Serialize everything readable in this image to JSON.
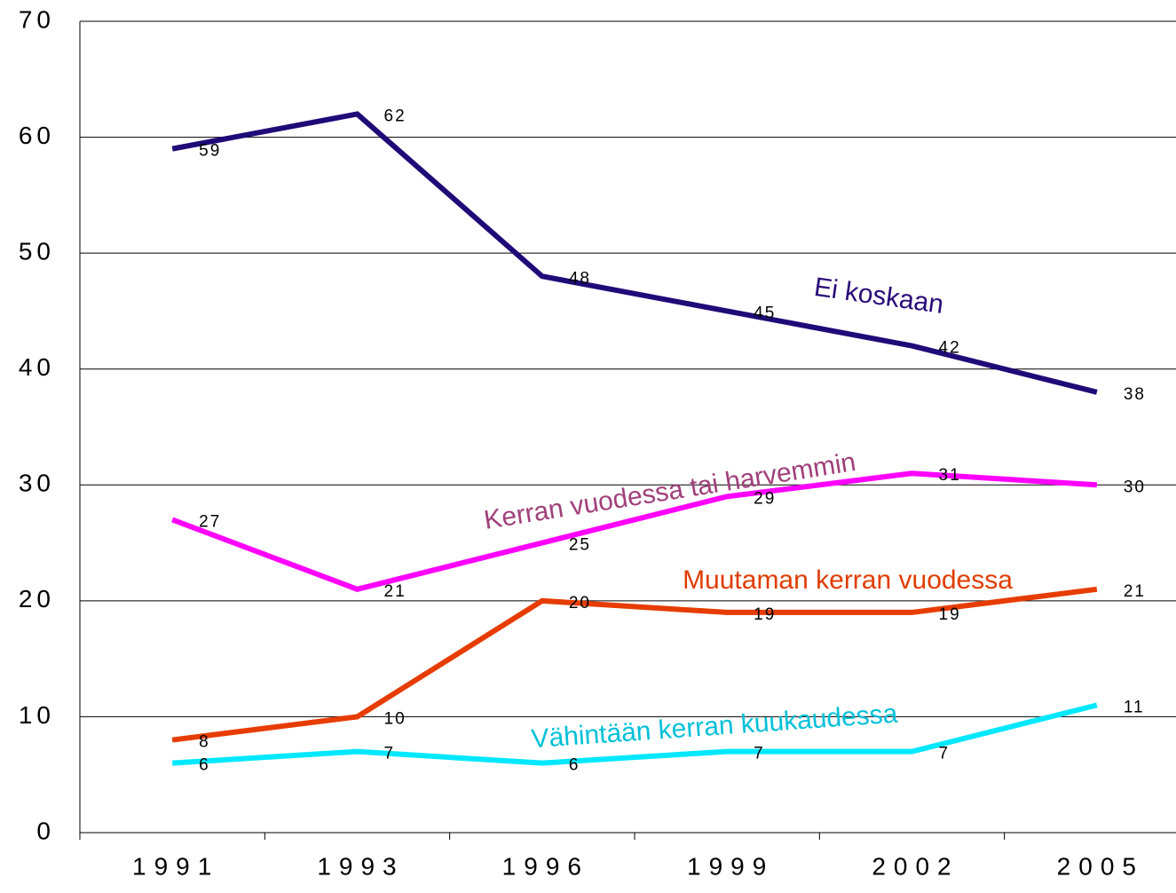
{
  "chart_data": {
    "type": "line",
    "categories": [
      "1991",
      "1993",
      "1996",
      "1999",
      "2002",
      "2005"
    ],
    "series": [
      {
        "name": "Ei koskaan",
        "color": "#1f0a78",
        "values": [
          59,
          62,
          48,
          45,
          42,
          38
        ]
      },
      {
        "name": "Kerran vuodessa tai harvemmin",
        "color": "#ff00ff",
        "values": [
          27,
          21,
          25,
          29,
          31,
          30
        ]
      },
      {
        "name": "Muutaman kerran vuodessa",
        "color": "#e63c00",
        "values": [
          8,
          10,
          20,
          19,
          19,
          21
        ]
      },
      {
        "name": "Vähintään kerran kuukaudessa",
        "color": "#00e8ff",
        "values": [
          6,
          7,
          6,
          7,
          7,
          11
        ]
      }
    ],
    "ylim": [
      0,
      70
    ],
    "yticks": [
      0,
      10,
      20,
      30,
      40,
      50,
      60,
      70
    ],
    "grid": true
  }
}
